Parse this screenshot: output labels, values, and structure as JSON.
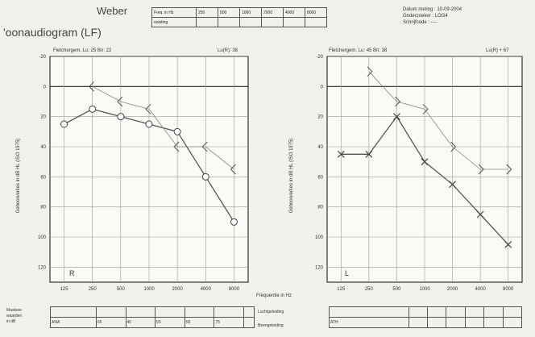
{
  "header": {
    "title": "'oonaudiogram (LF)",
    "weber_label": "Weber",
    "weber_row1_label": "Freq. in Hz",
    "weber_row2_label": "ooisting",
    "weber_freqs": [
      "250",
      "500",
      "1000",
      "2000",
      "4000",
      "8000"
    ],
    "date_line": "Datum meting : 10-09-2004",
    "examiner_line": "Onderzoeker : LOG4",
    "audiometer_line": "Schrijfcode : ----"
  },
  "right_ear": {
    "fletcher": "Fletchergem. Lu: 25   Bn: 22",
    "lu_r": "Lu(R): 38",
    "ear_label": "R",
    "ylabel": "Gehoorverlies in dB HL (ISO 1975)"
  },
  "left_ear": {
    "fletcher": "Fletchergem. Lu: 45   Bn: 38",
    "lu_l": "Lu(R) + 67",
    "ear_label": "L",
    "ylabel": "Gehoorverlies in dB HL (ISO 1975)"
  },
  "axis": {
    "x_ticks": [
      "125",
      "250",
      "500",
      "1000",
      "2000",
      "4000",
      "8000"
    ],
    "y_ticks": [
      "-20",
      "0",
      "20",
      "40",
      "60",
      "80",
      "100",
      "120"
    ],
    "center_xlabel": "Frequentie in Hz"
  },
  "bottom": {
    "left_label_lines": [
      "Maskeer",
      "waarden",
      "in dB"
    ],
    "air_label": "Luchtgeleiding",
    "bone_label": "Beengeleiding",
    "right_values_row1": [
      "",
      "",
      "",
      "",
      "",
      "",
      ""
    ],
    "right_values_row2": [
      "",
      "",
      "",
      "",
      "",
      "",
      ""
    ],
    "right_values_row1_b": [
      "",
      "",
      "",
      "",
      "",
      "",
      ""
    ],
    "right_values_row2_b": [
      "ATH",
      "",
      "",
      "",
      "",
      "",
      ""
    ]
  },
  "bottom_left_row2": [
    "ANA",
    "65",
    "40",
    "55",
    "55",
    "75",
    ""
  ],
  "chart_data": [
    {
      "type": "line",
      "ear": "right",
      "x": [
        125,
        250,
        500,
        1000,
        2000,
        4000,
        8000
      ],
      "series": [
        {
          "name": "Luchtgeleiding",
          "marker": "circle",
          "values": [
            25,
            15,
            20,
            25,
            30,
            60,
            90
          ]
        },
        {
          "name": "Beengeleiding",
          "marker": "<",
          "values": [
            null,
            0,
            10,
            15,
            40,
            40,
            55
          ]
        }
      ],
      "ylim": [
        -20,
        130
      ],
      "y_inverted": true
    },
    {
      "type": "line",
      "ear": "left",
      "x": [
        125,
        250,
        500,
        1000,
        2000,
        4000,
        8000
      ],
      "series": [
        {
          "name": "Luchtgeleiding",
          "marker": "cross",
          "values": [
            45,
            45,
            20,
            50,
            65,
            85,
            105
          ]
        },
        {
          "name": "Beengeleiding",
          "marker": ">",
          "values": [
            null,
            -10,
            10,
            15,
            40,
            55,
            55
          ]
        }
      ],
      "ylim": [
        -20,
        130
      ],
      "y_inverted": true
    }
  ]
}
